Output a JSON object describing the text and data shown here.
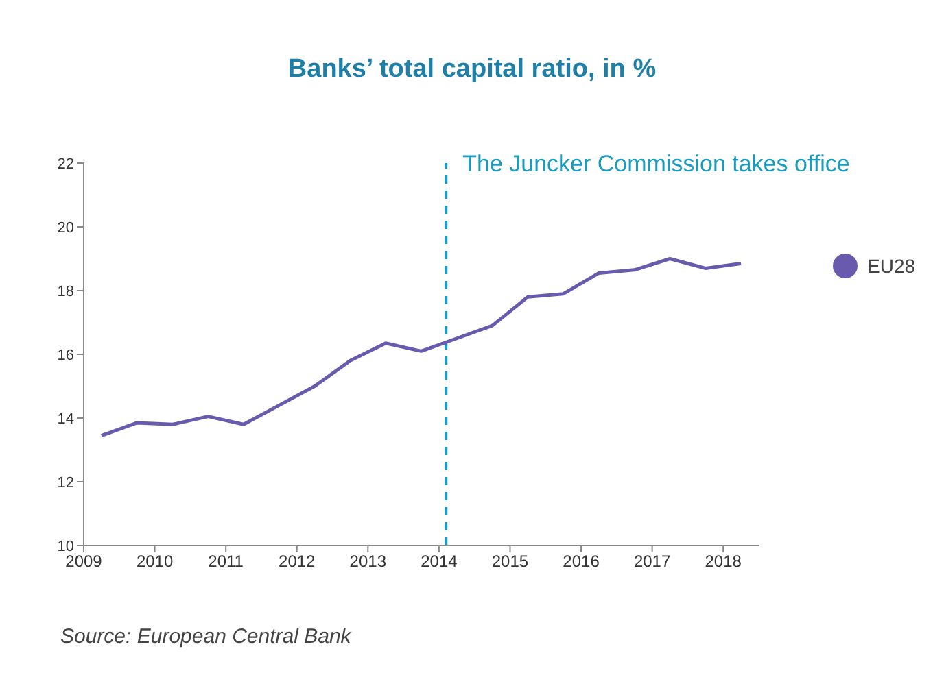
{
  "chart_data": {
    "type": "line",
    "title": "Banks’ total capital ratio, in %",
    "x": [
      2009.25,
      2009.75,
      2010.25,
      2010.75,
      2011.25,
      2011.75,
      2012.25,
      2012.75,
      2013.25,
      2013.75,
      2014.25,
      2014.75,
      2015.25,
      2015.75,
      2016.25,
      2016.75,
      2017.25,
      2017.75,
      2018.25
    ],
    "series": [
      {
        "name": "EU28",
        "color": "#6a5aad",
        "values": [
          13.45,
          13.85,
          13.8,
          14.05,
          13.8,
          14.4,
          15.0,
          15.8,
          16.35,
          16.1,
          16.5,
          16.9,
          17.8,
          17.9,
          18.55,
          18.65,
          19.0,
          18.7,
          18.85
        ]
      }
    ],
    "xlim": [
      2009,
      2018.5
    ],
    "xticks": [
      2009,
      2010,
      2011,
      2012,
      2013,
      2014,
      2015,
      2016,
      2017,
      2018
    ],
    "ylim": [
      10,
      22
    ],
    "yticks": [
      10,
      12,
      14,
      16,
      18,
      20,
      22
    ],
    "ref_lines": [
      {
        "axis": "x",
        "value": 2014.1,
        "label": "The Juncker Commission takes office",
        "color": "#1a9bbf",
        "line_style": "dashed"
      }
    ],
    "annotations": [
      "Source: European Central Bank"
    ],
    "grid": false,
    "legend": "right",
    "marker": "none",
    "line_style": "solid"
  }
}
